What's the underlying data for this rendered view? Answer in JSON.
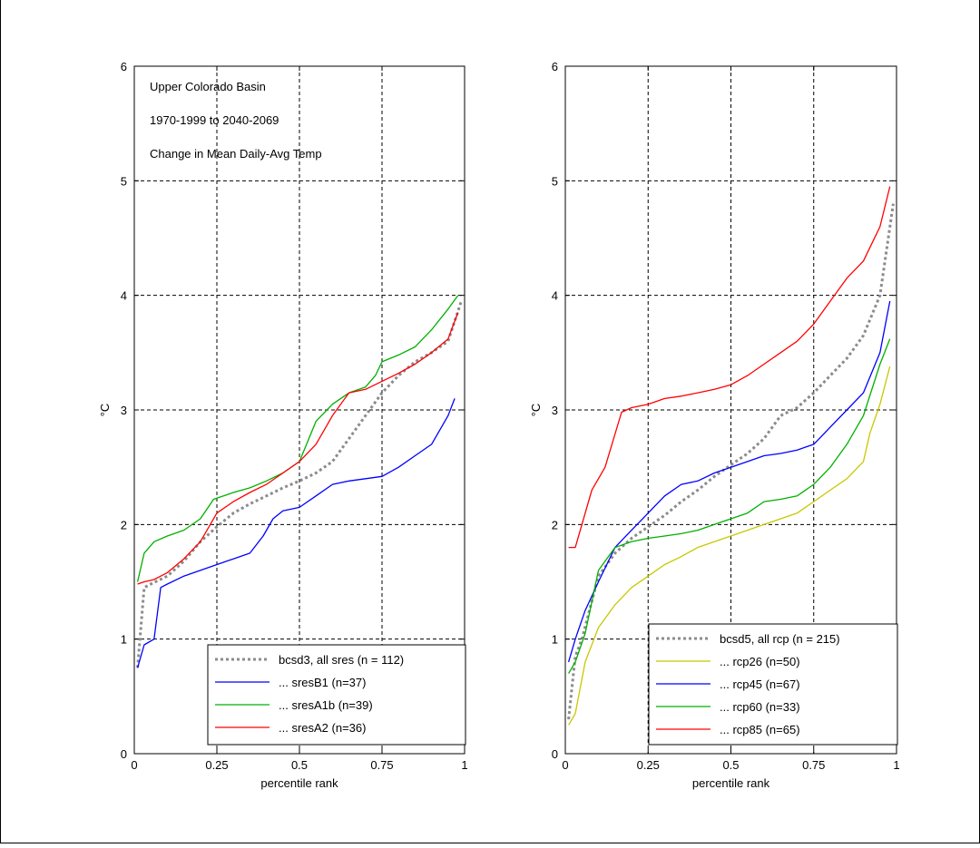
{
  "colors": {
    "grey": "#8c8c8c",
    "blue": "#0000ff",
    "green": "#00b000",
    "red": "#ff0000",
    "yellow": "#c8c800"
  },
  "chart_data": [
    {
      "type": "line",
      "title": "",
      "annotations": [
        "Upper Colorado Basin",
        "1970-1999 to 2040-2069",
        "Change in Mean Daily-Avg Temp"
      ],
      "xlabel": "percentile rank",
      "ylabel": "°C",
      "xlim": [
        0,
        1
      ],
      "ylim": [
        0,
        6
      ],
      "xticks": [
        "0",
        "0.25",
        "0.5",
        "0.75",
        "1"
      ],
      "yticks": [
        "0",
        "1",
        "2",
        "3",
        "4",
        "5",
        "6"
      ],
      "grid": true,
      "legend_position": "bottom-right",
      "series": [
        {
          "name": "bcsd3, all sres (n = 112)",
          "color": "grey",
          "style": "dotted",
          "x": [
            0.01,
            0.03,
            0.05,
            0.1,
            0.15,
            0.2,
            0.25,
            0.3,
            0.35,
            0.4,
            0.45,
            0.5,
            0.55,
            0.6,
            0.65,
            0.7,
            0.75,
            0.8,
            0.85,
            0.9,
            0.95,
            0.99
          ],
          "y": [
            0.75,
            1.45,
            1.48,
            1.55,
            1.68,
            1.85,
            1.98,
            2.1,
            2.18,
            2.25,
            2.32,
            2.38,
            2.45,
            2.55,
            2.75,
            2.95,
            3.15,
            3.3,
            3.42,
            3.5,
            3.6,
            3.95
          ]
        },
        {
          "name": "... sresB1 (n=37)",
          "color": "blue",
          "style": "solid",
          "x": [
            0.01,
            0.03,
            0.06,
            0.08,
            0.1,
            0.15,
            0.2,
            0.25,
            0.3,
            0.35,
            0.39,
            0.42,
            0.45,
            0.5,
            0.55,
            0.6,
            0.65,
            0.7,
            0.75,
            0.8,
            0.85,
            0.9,
            0.95,
            0.97
          ],
          "y": [
            0.75,
            0.95,
            1.0,
            1.45,
            1.48,
            1.55,
            1.6,
            1.65,
            1.7,
            1.75,
            1.9,
            2.05,
            2.12,
            2.15,
            2.25,
            2.35,
            2.38,
            2.4,
            2.42,
            2.5,
            2.6,
            2.7,
            2.95,
            3.1
          ]
        },
        {
          "name": "... sresA1b (n=39)",
          "color": "green",
          "style": "solid",
          "x": [
            0.01,
            0.03,
            0.06,
            0.1,
            0.15,
            0.2,
            0.24,
            0.3,
            0.35,
            0.4,
            0.45,
            0.5,
            0.55,
            0.6,
            0.65,
            0.7,
            0.73,
            0.75,
            0.8,
            0.85,
            0.9,
            0.95,
            0.98
          ],
          "y": [
            1.5,
            1.75,
            1.85,
            1.9,
            1.95,
            2.05,
            2.22,
            2.28,
            2.32,
            2.38,
            2.45,
            2.55,
            2.9,
            3.05,
            3.15,
            3.2,
            3.3,
            3.42,
            3.48,
            3.55,
            3.7,
            3.88,
            4.0
          ]
        },
        {
          "name": "... sresA2 (n=36)",
          "color": "red",
          "style": "solid",
          "x": [
            0.01,
            0.03,
            0.06,
            0.1,
            0.15,
            0.2,
            0.25,
            0.3,
            0.35,
            0.4,
            0.45,
            0.5,
            0.55,
            0.6,
            0.65,
            0.7,
            0.75,
            0.8,
            0.85,
            0.9,
            0.95,
            0.98
          ],
          "y": [
            1.48,
            1.5,
            1.52,
            1.58,
            1.7,
            1.85,
            2.1,
            2.2,
            2.28,
            2.35,
            2.45,
            2.55,
            2.7,
            2.95,
            3.15,
            3.18,
            3.25,
            3.32,
            3.4,
            3.5,
            3.62,
            3.85
          ]
        }
      ]
    },
    {
      "type": "line",
      "title": "",
      "xlabel": "percentile rank",
      "ylabel": "°C",
      "xlim": [
        0,
        1
      ],
      "ylim": [
        0,
        6
      ],
      "xticks": [
        "0",
        "0.25",
        "0.5",
        "0.75",
        "1"
      ],
      "yticks": [
        "0",
        "1",
        "2",
        "3",
        "4",
        "5",
        "6"
      ],
      "grid": true,
      "legend_position": "bottom-right",
      "series": [
        {
          "name": "bcsd5, all rcp (n = 215)",
          "color": "grey",
          "style": "dotted",
          "x": [
            0.01,
            0.03,
            0.05,
            0.1,
            0.15,
            0.2,
            0.25,
            0.3,
            0.35,
            0.4,
            0.45,
            0.5,
            0.55,
            0.6,
            0.65,
            0.7,
            0.75,
            0.8,
            0.85,
            0.9,
            0.95,
            0.99
          ],
          "y": [
            0.3,
            0.85,
            1.0,
            1.55,
            1.75,
            1.88,
            1.98,
            2.08,
            2.2,
            2.3,
            2.42,
            2.52,
            2.62,
            2.75,
            2.95,
            3.02,
            3.15,
            3.3,
            3.45,
            3.65,
            4.0,
            4.8
          ]
        },
        {
          "name": "... rcp26 (n=50)",
          "color": "yellow",
          "style": "solid",
          "x": [
            0.01,
            0.03,
            0.06,
            0.1,
            0.15,
            0.2,
            0.25,
            0.3,
            0.35,
            0.4,
            0.45,
            0.5,
            0.55,
            0.6,
            0.65,
            0.7,
            0.75,
            0.8,
            0.85,
            0.9,
            0.92,
            0.95,
            0.98
          ],
          "y": [
            0.25,
            0.35,
            0.8,
            1.1,
            1.3,
            1.45,
            1.55,
            1.65,
            1.72,
            1.8,
            1.85,
            1.9,
            1.95,
            2.0,
            2.05,
            2.1,
            2.2,
            2.3,
            2.4,
            2.55,
            2.8,
            3.05,
            3.38
          ]
        },
        {
          "name": "... rcp45 (n=67)",
          "color": "blue",
          "style": "solid",
          "x": [
            0.01,
            0.03,
            0.06,
            0.1,
            0.15,
            0.2,
            0.25,
            0.3,
            0.35,
            0.4,
            0.45,
            0.5,
            0.55,
            0.6,
            0.65,
            0.7,
            0.75,
            0.8,
            0.85,
            0.9,
            0.95,
            0.98
          ],
          "y": [
            0.8,
            1.0,
            1.25,
            1.5,
            1.8,
            1.95,
            2.1,
            2.25,
            2.35,
            2.38,
            2.45,
            2.5,
            2.55,
            2.6,
            2.62,
            2.65,
            2.7,
            2.85,
            3.0,
            3.15,
            3.5,
            3.95
          ]
        },
        {
          "name": "... rcp60 (n=33)",
          "color": "green",
          "style": "solid",
          "x": [
            0.01,
            0.03,
            0.06,
            0.1,
            0.15,
            0.2,
            0.25,
            0.3,
            0.35,
            0.4,
            0.45,
            0.5,
            0.55,
            0.6,
            0.65,
            0.7,
            0.75,
            0.8,
            0.85,
            0.9,
            0.95,
            0.98
          ],
          "y": [
            0.7,
            0.8,
            1.05,
            1.6,
            1.8,
            1.85,
            1.88,
            1.9,
            1.92,
            1.95,
            2.0,
            2.05,
            2.1,
            2.2,
            2.22,
            2.25,
            2.35,
            2.5,
            2.7,
            2.95,
            3.4,
            3.62
          ]
        },
        {
          "name": "... rcp85 (n=65)",
          "color": "red",
          "style": "solid",
          "x": [
            0.01,
            0.03,
            0.05,
            0.08,
            0.12,
            0.17,
            0.2,
            0.25,
            0.3,
            0.35,
            0.4,
            0.45,
            0.5,
            0.55,
            0.6,
            0.65,
            0.7,
            0.75,
            0.8,
            0.85,
            0.9,
            0.95,
            0.98
          ],
          "y": [
            1.8,
            1.8,
            2.0,
            2.3,
            2.5,
            2.98,
            3.02,
            3.05,
            3.1,
            3.12,
            3.15,
            3.18,
            3.22,
            3.3,
            3.4,
            3.5,
            3.6,
            3.75,
            3.95,
            4.15,
            4.3,
            4.6,
            4.95
          ]
        }
      ]
    }
  ]
}
